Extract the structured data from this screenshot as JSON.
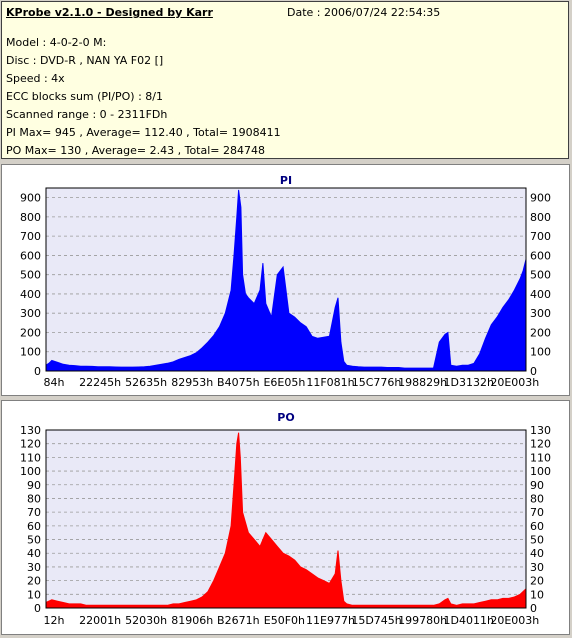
{
  "info": {
    "app_title": "KProbe v2.1.0 - Designed by Karr",
    "date": "Date : 2006/07/24 22:54:35",
    "model": "Model : 4-0-2-0 M:",
    "disc": "Disc : DVD-R , NAN YA F02 []",
    "speed": "Speed : 4x",
    "ecc": "ECC blocks sum (PI/PO) : 8/1",
    "range": "Scanned range : 0 - 2311FDh",
    "pi_stats": "PI Max= 945 , Average= 112.40 , Total= 1908411",
    "po_stats": "PO Max= 130 , Average= 2.43 , Total= 284748"
  },
  "colors": {
    "pi": "#0000ff",
    "po": "#ff0000",
    "plot_bg": "#e9e9f7",
    "grid": "#9a9a9a"
  },
  "chart_data": [
    {
      "type": "area",
      "title": "PI",
      "ylim": [
        0,
        950
      ],
      "yticks": [
        0,
        100,
        200,
        300,
        400,
        500,
        600,
        700,
        800,
        900
      ],
      "xticks": [
        "84h",
        "22245h",
        "52635h",
        "82953h",
        "B4075h",
        "E6E05h",
        "11F081h",
        "15C776h",
        "198829h",
        "1D3132h",
        "20E003h"
      ],
      "series": [
        {
          "values": [
            [
              0,
              30
            ],
            [
              0.5,
              40
            ],
            [
              1,
              55
            ],
            [
              2,
              45
            ],
            [
              3,
              35
            ],
            [
              4,
              30
            ],
            [
              5,
              28
            ],
            [
              6,
              25
            ],
            [
              7,
              25
            ],
            [
              8,
              24
            ],
            [
              9,
              22
            ],
            [
              10,
              22
            ],
            [
              11,
              22
            ],
            [
              12,
              21
            ],
            [
              13,
              20
            ],
            [
              14,
              20
            ],
            [
              15,
              20
            ],
            [
              16,
              21
            ],
            [
              17,
              22
            ],
            [
              18,
              25
            ],
            [
              19,
              30
            ],
            [
              20,
              35
            ],
            [
              21,
              40
            ],
            [
              22,
              48
            ],
            [
              23,
              60
            ],
            [
              24,
              70
            ],
            [
              25,
              80
            ],
            [
              26,
              95
            ],
            [
              27,
              120
            ],
            [
              28,
              150
            ],
            [
              29,
              185
            ],
            [
              30,
              230
            ],
            [
              31,
              300
            ],
            [
              32,
              420
            ],
            [
              32.5,
              600
            ],
            [
              33,
              800
            ],
            [
              33.3,
              940
            ],
            [
              33.7,
              850
            ],
            [
              34,
              500
            ],
            [
              34.5,
              400
            ],
            [
              35,
              380
            ],
            [
              36,
              350
            ],
            [
              37,
              420
            ],
            [
              37.5,
              560
            ],
            [
              38,
              350
            ],
            [
              39,
              280
            ],
            [
              40,
              500
            ],
            [
              41,
              540
            ],
            [
              42,
              300
            ],
            [
              43,
              280
            ],
            [
              44,
              250
            ],
            [
              45,
              230
            ],
            [
              46,
              180
            ],
            [
              47,
              170
            ],
            [
              48,
              175
            ],
            [
              49,
              180
            ],
            [
              50,
              330
            ],
            [
              50.5,
              380
            ],
            [
              51,
              150
            ],
            [
              51.5,
              50
            ],
            [
              52,
              30
            ],
            [
              53,
              25
            ],
            [
              54,
              22
            ],
            [
              55,
              20
            ],
            [
              56,
              20
            ],
            [
              57,
              20
            ],
            [
              58,
              20
            ],
            [
              59,
              18
            ],
            [
              60,
              18
            ],
            [
              61,
              18
            ],
            [
              62,
              15
            ],
            [
              63,
              15
            ],
            [
              64,
              15
            ],
            [
              65,
              15
            ],
            [
              66,
              15
            ],
            [
              67,
              15
            ],
            [
              68,
              150
            ],
            [
              69,
              190
            ],
            [
              69.5,
              200
            ],
            [
              70,
              30
            ],
            [
              71,
              25
            ],
            [
              72,
              30
            ],
            [
              73,
              30
            ],
            [
              74,
              40
            ],
            [
              75,
              90
            ],
            [
              76,
              170
            ],
            [
              77,
              240
            ],
            [
              78,
              280
            ],
            [
              79,
              330
            ],
            [
              80,
              370
            ],
            [
              81,
              420
            ],
            [
              82,
              480
            ],
            [
              82.5,
              520
            ],
            [
              83,
              580
            ]
          ]
        }
      ]
    },
    {
      "type": "area",
      "title": "PO",
      "ylim": [
        0,
        130
      ],
      "yticks": [
        0,
        10,
        20,
        30,
        40,
        50,
        60,
        70,
        80,
        90,
        100,
        110,
        120,
        130
      ],
      "xticks": [
        "12h",
        "22001h",
        "52030h",
        "81906h",
        "B2671h",
        "E50F0h",
        "11E977h",
        "15D745h",
        "199780h",
        "1D4011h",
        "20E003h"
      ],
      "series": [
        {
          "values": [
            [
              0,
              4
            ],
            [
              1,
              6
            ],
            [
              2,
              5
            ],
            [
              3,
              4
            ],
            [
              4,
              3
            ],
            [
              5,
              3
            ],
            [
              6,
              3
            ],
            [
              7,
              2
            ],
            [
              8,
              2
            ],
            [
              9,
              2
            ],
            [
              10,
              2
            ],
            [
              11,
              2
            ],
            [
              12,
              2
            ],
            [
              13,
              2
            ],
            [
              14,
              2
            ],
            [
              15,
              2
            ],
            [
              16,
              2
            ],
            [
              17,
              2
            ],
            [
              18,
              2
            ],
            [
              19,
              2
            ],
            [
              20,
              2
            ],
            [
              21,
              2
            ],
            [
              22,
              3
            ],
            [
              23,
              3
            ],
            [
              24,
              4
            ],
            [
              25,
              5
            ],
            [
              26,
              6
            ],
            [
              27,
              8
            ],
            [
              28,
              12
            ],
            [
              29,
              20
            ],
            [
              30,
              30
            ],
            [
              31,
              40
            ],
            [
              32,
              60
            ],
            [
              32.5,
              90
            ],
            [
              33,
              120
            ],
            [
              33.3,
              128
            ],
            [
              33.6,
              110
            ],
            [
              34,
              70
            ],
            [
              35,
              55
            ],
            [
              36,
              50
            ],
            [
              37,
              45
            ],
            [
              38,
              55
            ],
            [
              39,
              50
            ],
            [
              40,
              45
            ],
            [
              41,
              40
            ],
            [
              42,
              38
            ],
            [
              43,
              35
            ],
            [
              44,
              30
            ],
            [
              45,
              28
            ],
            [
              46,
              25
            ],
            [
              47,
              22
            ],
            [
              48,
              20
            ],
            [
              49,
              18
            ],
            [
              50,
              25
            ],
            [
              50.5,
              42
            ],
            [
              51,
              20
            ],
            [
              51.5,
              5
            ],
            [
              52,
              3
            ],
            [
              53,
              2
            ],
            [
              54,
              2
            ],
            [
              55,
              2
            ],
            [
              56,
              2
            ],
            [
              57,
              2
            ],
            [
              58,
              2
            ],
            [
              59,
              2
            ],
            [
              60,
              2
            ],
            [
              61,
              2
            ],
            [
              62,
              2
            ],
            [
              63,
              2
            ],
            [
              64,
              2
            ],
            [
              65,
              2
            ],
            [
              66,
              2
            ],
            [
              67,
              2
            ],
            [
              68,
              3
            ],
            [
              69,
              6
            ],
            [
              69.5,
              7
            ],
            [
              70,
              3
            ],
            [
              71,
              2
            ],
            [
              72,
              3
            ],
            [
              73,
              3
            ],
            [
              74,
              3
            ],
            [
              75,
              4
            ],
            [
              76,
              5
            ],
            [
              77,
              6
            ],
            [
              78,
              6
            ],
            [
              79,
              7
            ],
            [
              80,
              7
            ],
            [
              81,
              8
            ],
            [
              82,
              10
            ],
            [
              83,
              14
            ]
          ]
        }
      ]
    }
  ]
}
